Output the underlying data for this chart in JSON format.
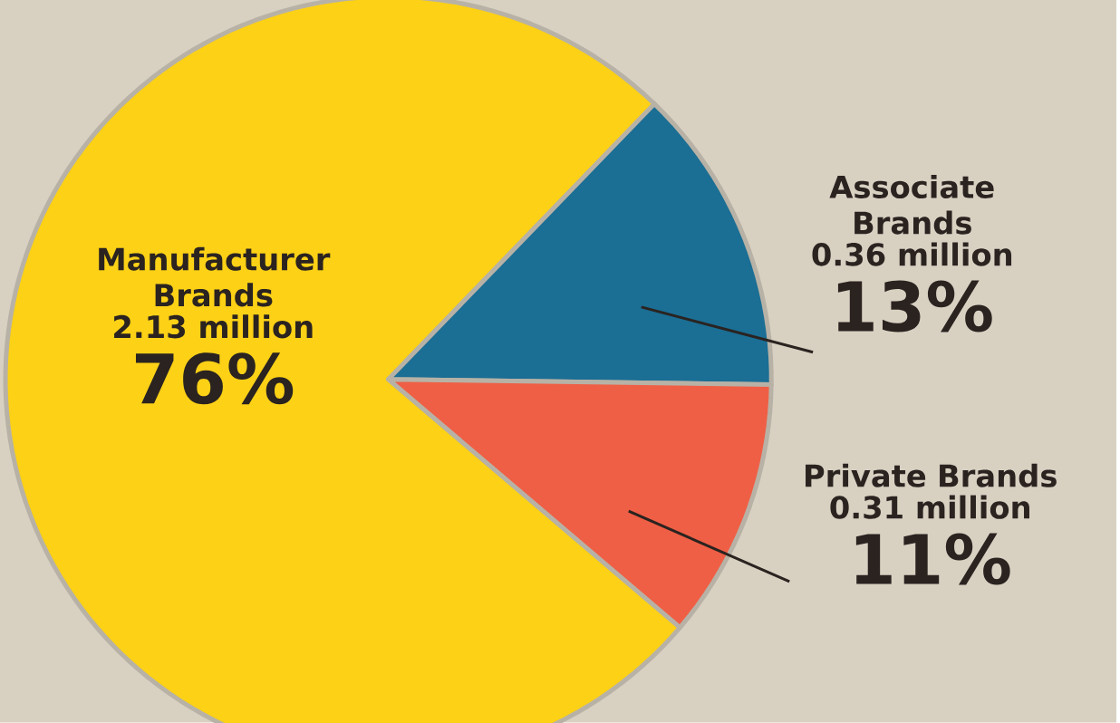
{
  "chart_data": {
    "type": "pie",
    "categories": [
      "Manufacturer Brands",
      "Associate Brands",
      "Private Brands"
    ],
    "values": [
      76,
      13,
      11
    ],
    "colors": [
      "#fcd116",
      "#1b6e94",
      "#ef5f45"
    ],
    "value_labels": [
      "76%",
      "13%",
      "11%"
    ],
    "annotations": [
      "2.13 million",
      "0.36 million",
      "0.31 million"
    ]
  }
}
